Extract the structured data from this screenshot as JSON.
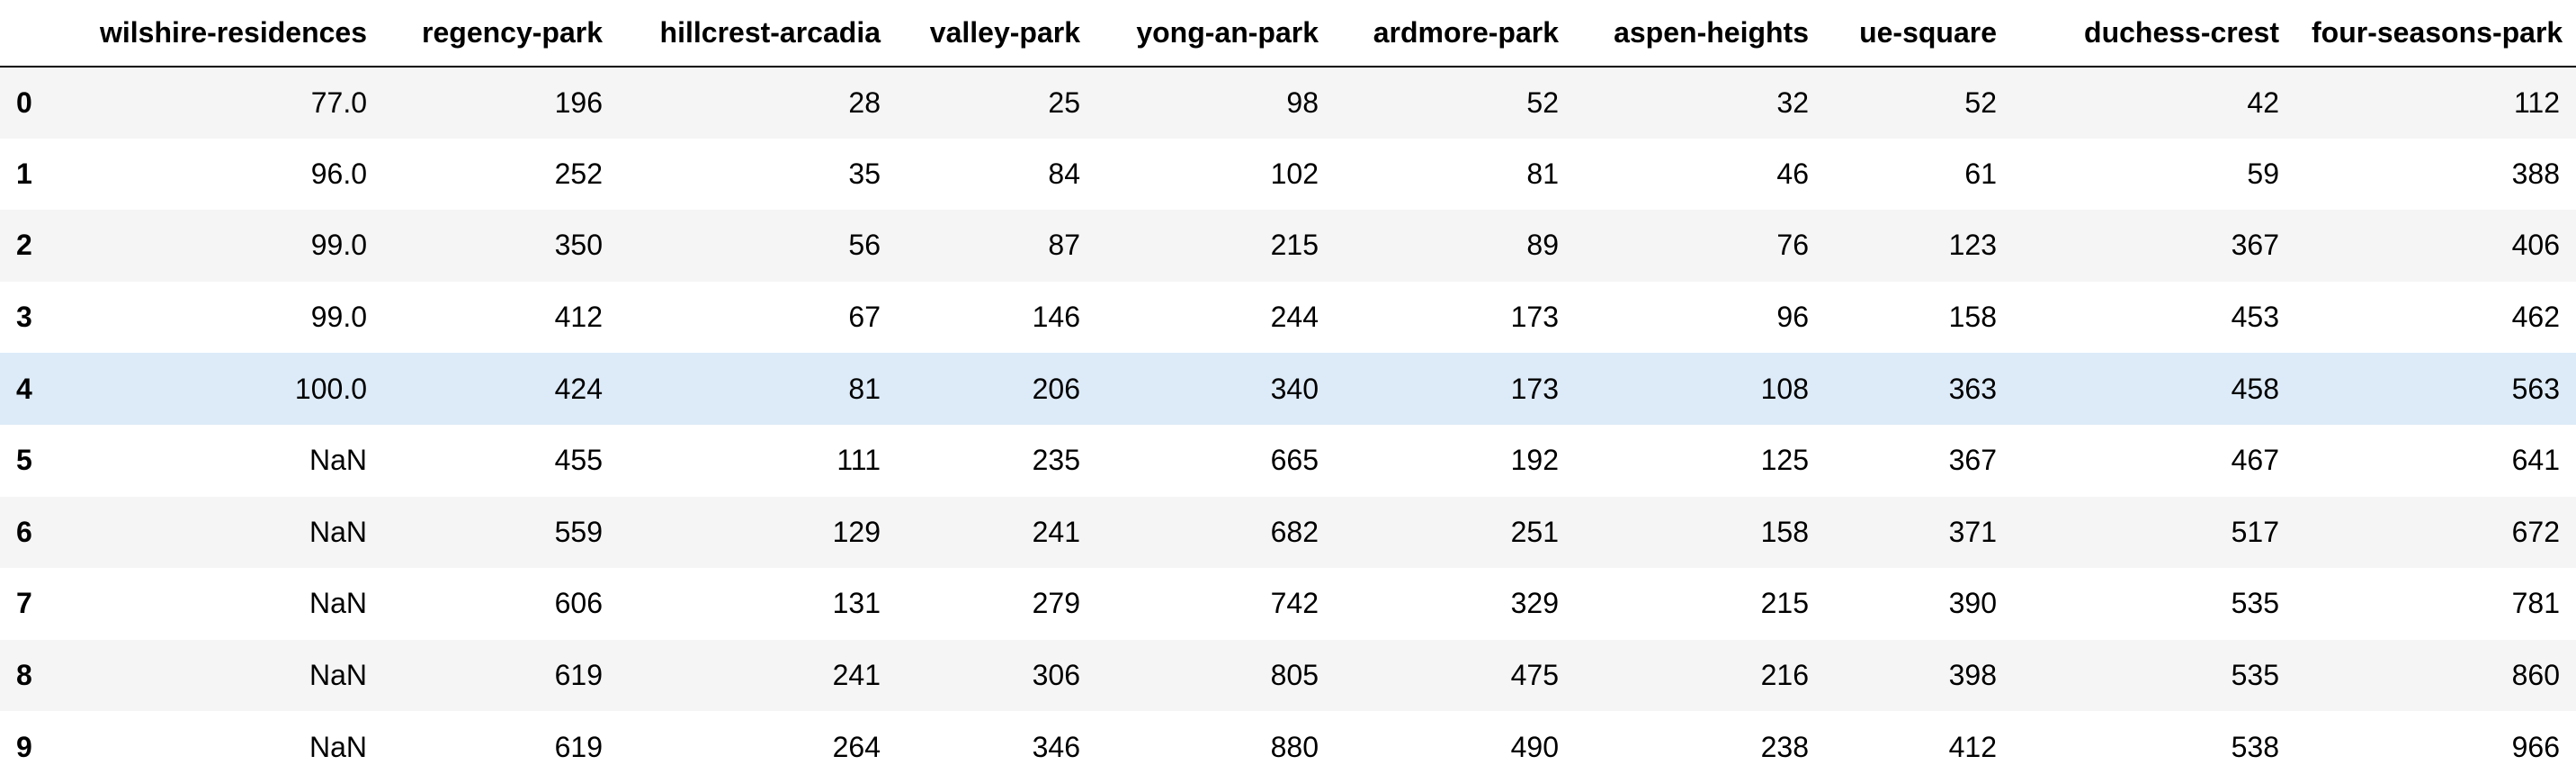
{
  "columns": [
    "wilshire-residences",
    "regency-park",
    "hillcrest-arcadia",
    "valley-park",
    "yong-an-park",
    "ardmore-park",
    "aspen-heights",
    "ue-square",
    "duchess-crest",
    "four-seasons-park"
  ],
  "highlighted_row": 4,
  "colors": {
    "stripe": "#f5f5f5",
    "highlight": "#ddebf8",
    "header_rule": "#000000"
  },
  "rows": [
    {
      "index": "0",
      "values": [
        "77.0",
        "196",
        "28",
        "25",
        "98",
        "52",
        "32",
        "52",
        "42",
        "112"
      ]
    },
    {
      "index": "1",
      "values": [
        "96.0",
        "252",
        "35",
        "84",
        "102",
        "81",
        "46",
        "61",
        "59",
        "388"
      ]
    },
    {
      "index": "2",
      "values": [
        "99.0",
        "350",
        "56",
        "87",
        "215",
        "89",
        "76",
        "123",
        "367",
        "406"
      ]
    },
    {
      "index": "3",
      "values": [
        "99.0",
        "412",
        "67",
        "146",
        "244",
        "173",
        "96",
        "158",
        "453",
        "462"
      ]
    },
    {
      "index": "4",
      "values": [
        "100.0",
        "424",
        "81",
        "206",
        "340",
        "173",
        "108",
        "363",
        "458",
        "563"
      ]
    },
    {
      "index": "5",
      "values": [
        "NaN",
        "455",
        "111",
        "235",
        "665",
        "192",
        "125",
        "367",
        "467",
        "641"
      ]
    },
    {
      "index": "6",
      "values": [
        "NaN",
        "559",
        "129",
        "241",
        "682",
        "251",
        "158",
        "371",
        "517",
        "672"
      ]
    },
    {
      "index": "7",
      "values": [
        "NaN",
        "606",
        "131",
        "279",
        "742",
        "329",
        "215",
        "390",
        "535",
        "781"
      ]
    },
    {
      "index": "8",
      "values": [
        "NaN",
        "619",
        "241",
        "306",
        "805",
        "475",
        "216",
        "398",
        "535",
        "860"
      ]
    },
    {
      "index": "9",
      "values": [
        "NaN",
        "619",
        "264",
        "346",
        "880",
        "490",
        "238",
        "412",
        "538",
        "966"
      ]
    }
  ]
}
